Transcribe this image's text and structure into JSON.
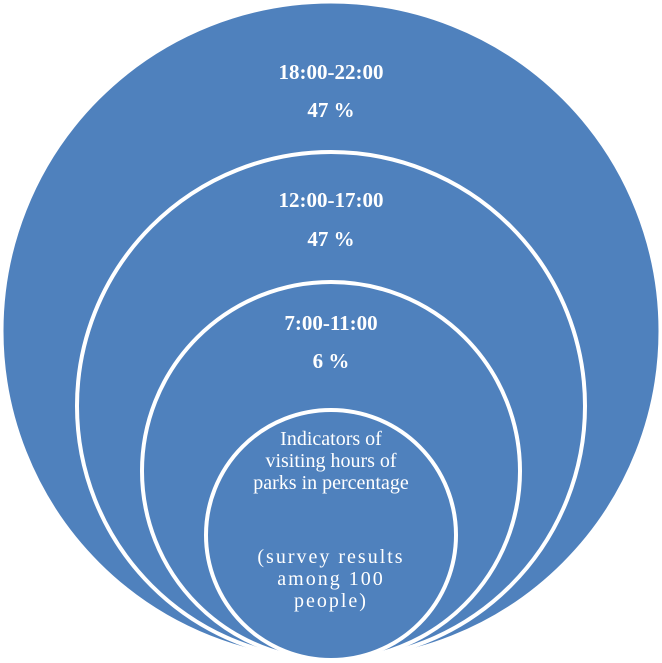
{
  "colors": {
    "fill": "#4f81bd",
    "stroke": "#ffffff"
  },
  "rings": [
    {
      "time": "18:00-22:00",
      "percent": "47 %"
    },
    {
      "time": "12:00-17:00",
      "percent": "47 %"
    },
    {
      "time": "7:00-11:00",
      "percent": "6 %"
    }
  ],
  "center": {
    "title": "Indicators of visiting hours of parks in percentage",
    "note": "(survey results among 100 people)"
  }
}
